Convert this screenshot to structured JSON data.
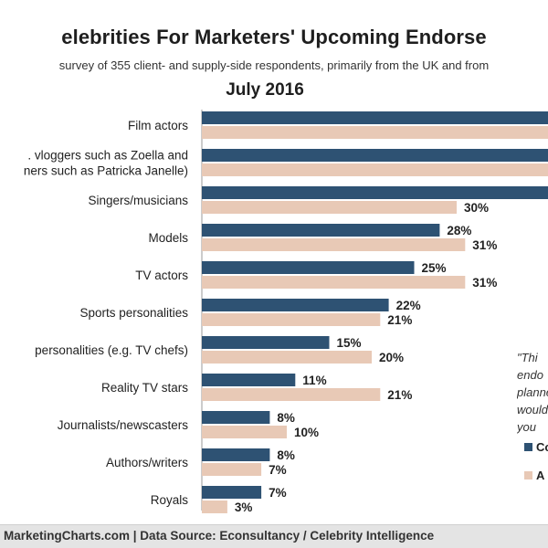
{
  "colors": {
    "series_primary": "#2e5273",
    "series_secondary": "#e8c9b6"
  },
  "chart_data": {
    "type": "bar",
    "orientation": "horizontal",
    "title": "elebrities For Marketers' Upcoming Endorse",
    "subtitle": "survey of 355 client- and supply-side respondents, primarily from the UK and from",
    "period": "July 2016",
    "categories": [
      "Film actors",
      ". vloggers such as Zoella and\nners such as Patricka Janelle)",
      "Singers/musicians",
      "Models",
      "TV actors",
      "Sports personalities",
      "personalities (e.g. TV chefs)",
      "Reality TV stars",
      "Journalists/newscasters",
      "Authors/writers",
      "Royals"
    ],
    "series": [
      {
        "name": "Co",
        "values": [
          null,
          null,
          null,
          28,
          25,
          22,
          15,
          11,
          8,
          8,
          7
        ],
        "labels": [
          "",
          "",
          "",
          "28%",
          "25%",
          "22%",
          "15%",
          "11%",
          "8%",
          "8%",
          "7%"
        ]
      },
      {
        "name": "A",
        "values": [
          null,
          null,
          30,
          31,
          31,
          21,
          20,
          21,
          10,
          7,
          3
        ],
        "labels": [
          "",
          "",
          "30%",
          "31%",
          "31%",
          "21%",
          "20%",
          "21%",
          "10%",
          "7%",
          "3%"
        ]
      }
    ],
    "annotation": [
      "\"Thi",
      "endo",
      "planned,",
      "would",
      "you"
    ],
    "legend_position": "right",
    "grid": false
  },
  "footer": {
    "text": "MarketingCharts.com | Data Source: Econsultancy / Celebrity Intelligence"
  }
}
